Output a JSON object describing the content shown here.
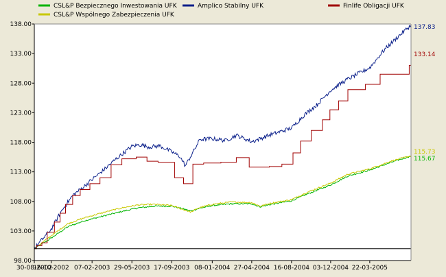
{
  "chart_data": {
    "type": "line",
    "title": "",
    "xlabel": "",
    "ylabel": "",
    "ylim": [
      98,
      138
    ],
    "y_ticks": [
      "98.00",
      "103.00",
      "108.00",
      "113.00",
      "118.00",
      "123.00",
      "128.00",
      "133.00",
      "138.00"
    ],
    "x_ticks": [
      "30-08-2002",
      "16-10-2002",
      "07-02-2003",
      "29-05-2003",
      "17-09-2003",
      "08-01-2004",
      "27-04-2004",
      "16-08-2004",
      "03-12-2004",
      "22-03-2005"
    ],
    "x_tick_values": [
      "2002-08-30",
      "2002-10-16",
      "2003-02-07",
      "2003-05-29",
      "2003-09-17",
      "2004-01-08",
      "2004-04-27",
      "2004-08-16",
      "2004-12-03",
      "2005-03-22"
    ],
    "xlim": [
      "2002-08-30",
      "2005-07-15"
    ],
    "baseline": 100,
    "legend_position": "top",
    "grid": false,
    "series": [
      {
        "name": "CSL&P Bezpiecznego Inwestowania UFK",
        "color": "#00b400",
        "end_label": "115.67",
        "points": [
          [
            "2002-08-30",
            100.0
          ],
          [
            "2002-10-16",
            101.8
          ],
          [
            "2002-12-01",
            103.7
          ],
          [
            "2003-01-15",
            104.7
          ],
          [
            "2003-03-15",
            105.6
          ],
          [
            "2003-05-01",
            106.3
          ],
          [
            "2003-06-15",
            106.9
          ],
          [
            "2003-08-01",
            107.2
          ],
          [
            "2003-09-17",
            107.2
          ],
          [
            "2003-10-15",
            106.8
          ],
          [
            "2003-11-10",
            106.4
          ],
          [
            "2003-12-01",
            106.8
          ],
          [
            "2004-01-08",
            107.3
          ],
          [
            "2004-03-01",
            107.6
          ],
          [
            "2004-04-27",
            107.6
          ],
          [
            "2004-05-20",
            107.1
          ],
          [
            "2004-06-20",
            107.5
          ],
          [
            "2004-08-16",
            108.1
          ],
          [
            "2004-10-01",
            109.3
          ],
          [
            "2004-12-03",
            110.8
          ],
          [
            "2005-01-20",
            112.3
          ],
          [
            "2005-03-22",
            113.3
          ],
          [
            "2005-05-20",
            114.6
          ],
          [
            "2005-07-15",
            115.67
          ]
        ]
      },
      {
        "name": "CSL&P Wspólnego Zabezpieczenia UFK",
        "color": "#c8c800",
        "end_label": "115.73",
        "points": [
          [
            "2002-08-30",
            100.0
          ],
          [
            "2002-10-16",
            102.2
          ],
          [
            "2002-12-01",
            104.2
          ],
          [
            "2003-01-15",
            105.2
          ],
          [
            "2003-03-15",
            106.2
          ],
          [
            "2003-05-01",
            106.9
          ],
          [
            "2003-06-15",
            107.4
          ],
          [
            "2003-08-01",
            107.5
          ],
          [
            "2003-09-17",
            107.3
          ],
          [
            "2003-10-15",
            106.7
          ],
          [
            "2003-11-10",
            106.2
          ],
          [
            "2003-12-01",
            106.9
          ],
          [
            "2004-01-08",
            107.5
          ],
          [
            "2004-03-01",
            107.9
          ],
          [
            "2004-04-27",
            107.8
          ],
          [
            "2004-05-20",
            107.2
          ],
          [
            "2004-06-20",
            107.7
          ],
          [
            "2004-08-16",
            108.3
          ],
          [
            "2004-10-01",
            109.6
          ],
          [
            "2004-12-03",
            111.1
          ],
          [
            "2005-01-20",
            112.6
          ],
          [
            "2005-03-22",
            113.5
          ],
          [
            "2005-05-20",
            114.8
          ],
          [
            "2005-07-15",
            115.73
          ]
        ]
      },
      {
        "name": "Amplico Stabilny UFK",
        "color": "#0a1f8a",
        "end_label": "137.83",
        "points": [
          [
            "2002-08-30",
            100.0
          ],
          [
            "2002-09-20",
            101.5
          ],
          [
            "2002-10-16",
            103.3
          ],
          [
            "2002-11-15",
            106.5
          ],
          [
            "2002-12-15",
            109.0
          ],
          [
            "2003-01-15",
            110.5
          ],
          [
            "2003-02-07",
            111.7
          ],
          [
            "2003-03-15",
            113.5
          ],
          [
            "2003-04-15",
            115.2
          ],
          [
            "2003-05-29",
            117.3
          ],
          [
            "2003-06-20",
            117.6
          ],
          [
            "2003-07-15",
            117.2
          ],
          [
            "2003-08-15",
            117.4
          ],
          [
            "2003-09-17",
            116.4
          ],
          [
            "2003-10-10",
            115.6
          ],
          [
            "2003-10-25",
            114.0
          ],
          [
            "2003-11-15",
            116.3
          ],
          [
            "2003-12-05",
            118.5
          ],
          [
            "2004-01-08",
            118.6
          ],
          [
            "2004-02-15",
            118.3
          ],
          [
            "2004-03-15",
            119.2
          ],
          [
            "2004-04-27",
            118.1
          ],
          [
            "2004-05-20",
            118.6
          ],
          [
            "2004-06-20",
            119.3
          ],
          [
            "2004-08-16",
            120.4
          ],
          [
            "2004-09-20",
            122.6
          ],
          [
            "2004-10-25",
            124.3
          ],
          [
            "2004-12-03",
            126.8
          ],
          [
            "2005-01-20",
            128.7
          ],
          [
            "2005-03-22",
            130.6
          ],
          [
            "2005-05-01",
            133.6
          ],
          [
            "2005-06-15",
            136.2
          ],
          [
            "2005-07-15",
            137.83
          ]
        ]
      },
      {
        "name": "Finlife Obligacji UFK",
        "color": "#a00000",
        "step": true,
        "end_label": "133.14",
        "points": [
          [
            "2002-08-30",
            100.0
          ],
          [
            "2002-09-05",
            100.5
          ],
          [
            "2002-09-20",
            101.0
          ],
          [
            "2002-10-05",
            102.8
          ],
          [
            "2002-10-25",
            104.5
          ],
          [
            "2002-11-10",
            106.0
          ],
          [
            "2002-11-25",
            107.5
          ],
          [
            "2002-12-15",
            109.0
          ],
          [
            "2003-01-05",
            110.0
          ],
          [
            "2003-02-01",
            111.0
          ],
          [
            "2003-03-01",
            112.0
          ],
          [
            "2003-04-01",
            114.2
          ],
          [
            "2003-05-01",
            115.2
          ],
          [
            "2003-06-10",
            115.5
          ],
          [
            "2003-07-10",
            114.8
          ],
          [
            "2003-08-10",
            114.6
          ],
          [
            "2003-09-25",
            112.0
          ],
          [
            "2003-10-20",
            111.0
          ],
          [
            "2003-11-15",
            114.3
          ],
          [
            "2003-12-15",
            114.5
          ],
          [
            "2004-02-01",
            114.6
          ],
          [
            "2004-03-15",
            115.4
          ],
          [
            "2004-04-20",
            113.8
          ],
          [
            "2004-06-15",
            113.9
          ],
          [
            "2004-07-20",
            114.3
          ],
          [
            "2004-08-20",
            116.2
          ],
          [
            "2004-09-10",
            118.2
          ],
          [
            "2004-10-10",
            120.0
          ],
          [
            "2004-11-10",
            121.8
          ],
          [
            "2004-12-01",
            123.5
          ],
          [
            "2004-12-25",
            125.0
          ],
          [
            "2005-01-20",
            126.9
          ],
          [
            "2005-03-10",
            127.8
          ],
          [
            "2005-04-20",
            129.5
          ],
          [
            "2005-07-10",
            131.0
          ],
          [
            "2005-07-15",
            133.14
          ]
        ]
      }
    ]
  }
}
